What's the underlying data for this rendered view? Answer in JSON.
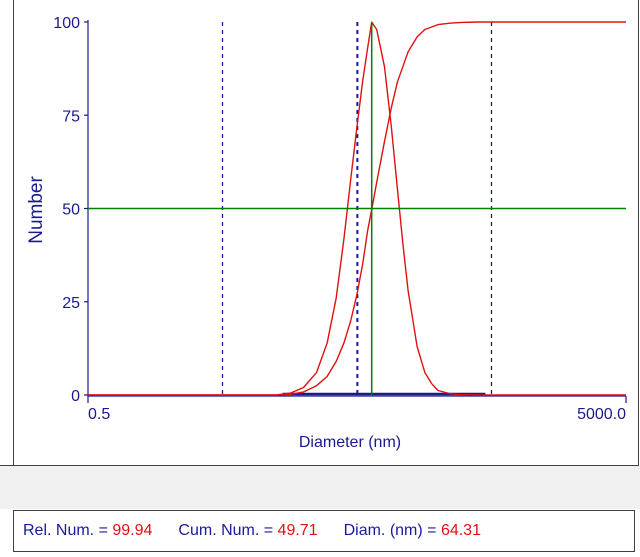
{
  "chart_data": {
    "type": "line",
    "xlabel": "Diameter (nm)",
    "ylabel": "Number",
    "x_scale": "log",
    "xlim": [
      0.5,
      5000.0
    ],
    "ylim": [
      0,
      100
    ],
    "x_tick_labels": [
      "0.5",
      "5000.0"
    ],
    "y_ticks": [
      0,
      25,
      50,
      75,
      100
    ],
    "y_tick_labels": [
      "0",
      "25",
      "50",
      "75",
      "100"
    ],
    "grid": false,
    "dashed_vertical_lines_x": [
      5,
      50,
      500
    ],
    "cursor": {
      "x": 64.31,
      "y": 50
    },
    "series": [
      {
        "color": "#e01010",
        "x": [
          12.6,
          16,
          20,
          25,
          30,
          35,
          40,
          45,
          50,
          55,
          60,
          64.31,
          70,
          80,
          90,
          100,
          110,
          120,
          140,
          160,
          180,
          200,
          250,
          300,
          400
        ],
        "values": [
          0,
          0.5,
          2,
          6,
          14,
          26,
          42,
          58,
          72,
          84,
          93,
          99.94,
          98,
          88,
          72,
          55,
          40,
          28,
          13,
          6,
          3,
          1.2,
          0.3,
          0.1,
          0
        ]
      },
      {
        "color": "#e01010",
        "x": [
          12.6,
          16,
          20,
          25,
          30,
          35,
          40,
          45,
          50,
          55,
          60,
          64.31,
          70,
          80,
          90,
          100,
          120,
          140,
          160,
          200,
          250,
          300,
          400,
          5000
        ],
        "values": [
          0,
          0.2,
          0.8,
          2.5,
          5,
          9,
          14,
          20,
          27,
          35,
          44,
          49.71,
          57,
          68,
          77,
          84,
          92,
          96,
          98,
          99.3,
          99.7,
          99.9,
          100,
          100
        ]
      }
    ]
  },
  "status": {
    "rel_num_label": "Rel. Num. = ",
    "rel_num_value": "99.94",
    "cum_num_label": "Cum. Num. = ",
    "cum_num_value": "49.71",
    "diam_label": "Diam. (nm) = ",
    "diam_value": "64.31"
  },
  "colors": {
    "curve": "#e01010",
    "cursor": "#008000",
    "dashed": "#1a1aa0",
    "axis_text": "#1a1a8c",
    "baseline_band": "#1a1a8c"
  }
}
